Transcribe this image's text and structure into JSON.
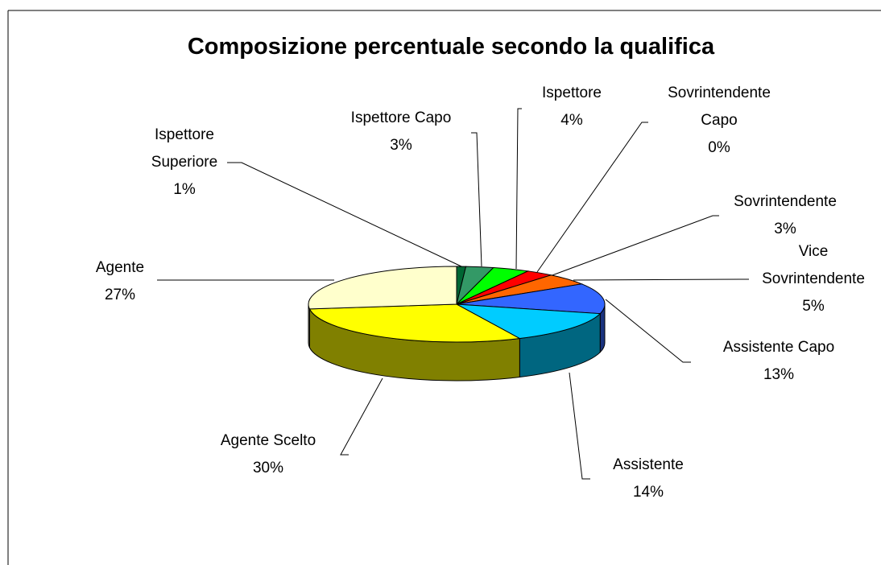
{
  "chart_data": {
    "type": "pie",
    "title": "Composizione percentuale secondo la qualifica",
    "categories": [
      "Ispettore Superiore",
      "Ispettore Capo",
      "Ispettore",
      "Sovrintendente Capo",
      "Sovrintendente",
      "Vice Sovrintendente",
      "Assistente Capo",
      "Assistente",
      "Agente Scelto",
      "Agente"
    ],
    "values": [
      1,
      3,
      4,
      0,
      3,
      5,
      13,
      14,
      30,
      27
    ],
    "value_labels": [
      "1%",
      "3%",
      "4%",
      "0%",
      "3%",
      "5%",
      "13%",
      "14%",
      "30%",
      "27%"
    ],
    "colors": [
      "#006633",
      "#339966",
      "#00ff00",
      "#993300",
      "#ff0000",
      "#ff6600",
      "#3366ff",
      "#00ccff",
      "#ffff00",
      "#ffffcc"
    ]
  }
}
